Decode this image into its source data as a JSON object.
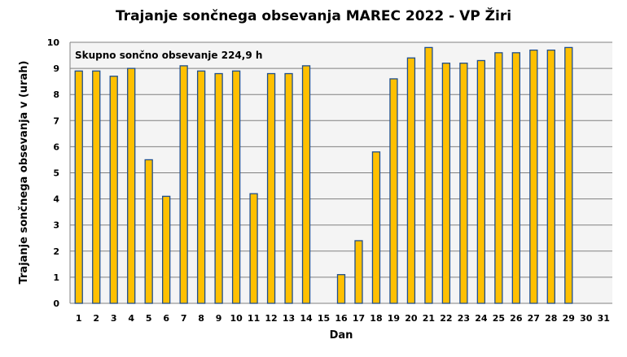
{
  "chart_data": {
    "type": "bar",
    "title": "Trajanje sončnega obsevanja  MAREC 2022 - VP Žiri",
    "xlabel": "Dan",
    "ylabel": "Trajanje  sončnega obsevanja  v (urah)",
    "annotation": "Skupno sončno obsevanje 224,9 h",
    "ylim": [
      0,
      10
    ],
    "yticks": [
      "0",
      "1",
      "2",
      "3",
      "4",
      "5",
      "6",
      "7",
      "8",
      "9",
      "10"
    ],
    "categories": [
      "1",
      "2",
      "3",
      "4",
      "5",
      "6",
      "7",
      "8",
      "9",
      "10",
      "11",
      "12",
      "13",
      "14",
      "15",
      "16",
      "17",
      "18",
      "19",
      "20",
      "21",
      "22",
      "23",
      "24",
      "25",
      "26",
      "27",
      "28",
      "29",
      "30",
      "31"
    ],
    "values": [
      8.9,
      8.9,
      8.7,
      9.0,
      5.5,
      4.1,
      9.1,
      8.9,
      8.8,
      8.9,
      4.2,
      8.8,
      8.8,
      9.1,
      0,
      1.1,
      2.4,
      5.8,
      8.6,
      9.4,
      9.8,
      9.2,
      9.2,
      9.3,
      9.6,
      9.6,
      9.7,
      9.7,
      9.8,
      0,
      0
    ],
    "grid": true,
    "colors": {
      "bar_fill": "#ffc000",
      "bar_stroke": "#1f4e8c",
      "grid": "#808080",
      "plot_bg": "#f4f4f4"
    }
  }
}
